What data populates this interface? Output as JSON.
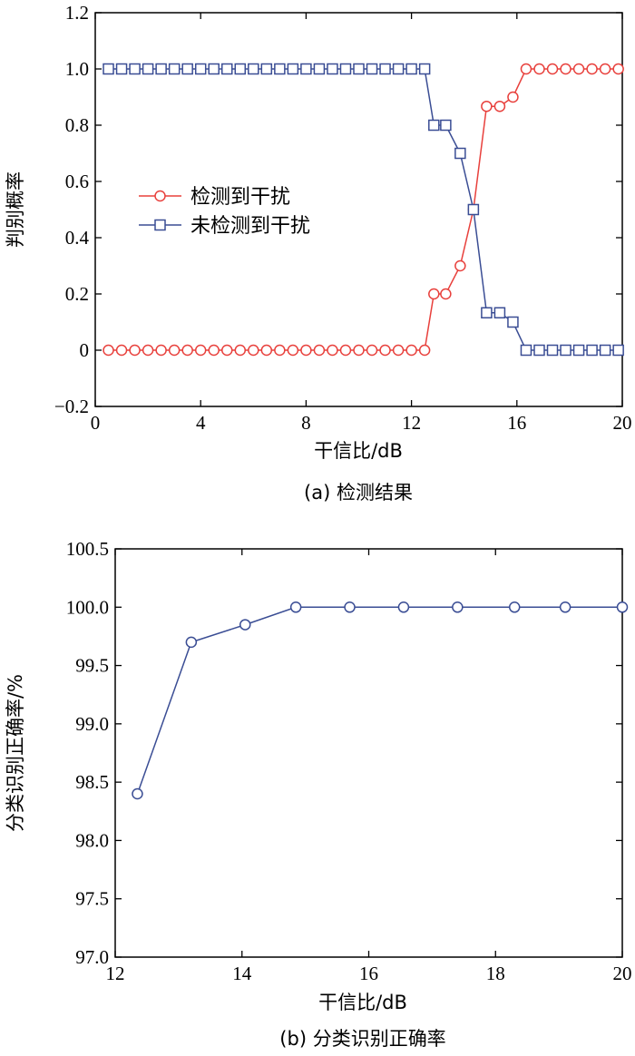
{
  "chart_data": [
    {
      "type": "line",
      "caption": "(a) 检测结果",
      "xlabel": "干信比/dB",
      "ylabel": "判别概率",
      "xlim": [
        0,
        20
      ],
      "ylim": [
        -0.2,
        1.2
      ],
      "xticks": [
        0,
        4,
        8,
        12,
        16,
        20
      ],
      "yticks": [
        -0.2,
        0,
        0.2,
        0.4,
        0.6,
        0.8,
        1.0,
        1.2
      ],
      "ytick_labels": [
        "−0.2",
        "0",
        "0.2",
        "0.4",
        "0.6",
        "0.8",
        "1.0",
        "1.2"
      ],
      "grid": false,
      "legend_position": "center-left",
      "series": [
        {
          "name": "检测到干扰",
          "color": "#e8403c",
          "marker": "circle",
          "x": [
            0.5,
            1.0,
            1.5,
            2.0,
            2.5,
            3.0,
            3.5,
            4.0,
            4.5,
            5.0,
            5.5,
            6.0,
            6.5,
            7.0,
            7.5,
            8.0,
            8.5,
            9.0,
            9.5,
            10.0,
            10.5,
            11.0,
            11.5,
            12.0,
            12.5,
            12.85,
            13.3,
            13.85,
            14.35,
            14.85,
            15.35,
            15.85,
            16.35,
            16.85,
            17.35,
            17.85,
            18.35,
            18.85,
            19.35,
            19.85
          ],
          "y": [
            0,
            0,
            0,
            0,
            0,
            0,
            0,
            0,
            0,
            0,
            0,
            0,
            0,
            0,
            0,
            0,
            0,
            0,
            0,
            0,
            0,
            0,
            0,
            0,
            0,
            0.2,
            0.2,
            0.3,
            0.5,
            0.867,
            0.867,
            0.9,
            1.0,
            1.0,
            1.0,
            1.0,
            1.0,
            1.0,
            1.0,
            1.0
          ]
        },
        {
          "name": "未检测到干扰",
          "color": "#3a4d94",
          "marker": "square",
          "x": [
            0.5,
            1.0,
            1.5,
            2.0,
            2.5,
            3.0,
            3.5,
            4.0,
            4.5,
            5.0,
            5.5,
            6.0,
            6.5,
            7.0,
            7.5,
            8.0,
            8.5,
            9.0,
            9.5,
            10.0,
            10.5,
            11.0,
            11.5,
            12.0,
            12.5,
            12.85,
            13.3,
            13.85,
            14.35,
            14.85,
            15.35,
            15.85,
            16.35,
            16.85,
            17.35,
            17.85,
            18.35,
            18.85,
            19.35,
            19.85
          ],
          "y": [
            1,
            1,
            1,
            1,
            1,
            1,
            1,
            1,
            1,
            1,
            1,
            1,
            1,
            1,
            1,
            1,
            1,
            1,
            1,
            1,
            1,
            1,
            1,
            1,
            1,
            0.8,
            0.8,
            0.7,
            0.5,
            0.133,
            0.133,
            0.1,
            0,
            0,
            0,
            0,
            0,
            0,
            0,
            0
          ]
        }
      ]
    },
    {
      "type": "line",
      "caption": "(b) 分类识别正确率",
      "xlabel": "干信比/dB",
      "ylabel": "分类识别正确率/%",
      "xlim": [
        12,
        20
      ],
      "ylim": [
        97.0,
        100.5
      ],
      "xticks": [
        12,
        14,
        16,
        18,
        20
      ],
      "yticks": [
        97.0,
        97.5,
        98.0,
        98.5,
        99.0,
        99.5,
        100.0,
        100.5
      ],
      "ytick_labels": [
        "97.0",
        "97.5",
        "98.0",
        "98.5",
        "99.0",
        "99.5",
        "100.0",
        "100.5"
      ],
      "grid": false,
      "series": [
        {
          "name": "",
          "color": "#3a4d94",
          "marker": "circle",
          "x": [
            12.35,
            13.2,
            14.05,
            14.85,
            15.7,
            16.55,
            17.4,
            18.3,
            19.1,
            20.0
          ],
          "y": [
            98.4,
            99.7,
            99.85,
            100.0,
            100.0,
            100.0,
            100.0,
            100.0,
            100.0,
            100.0
          ]
        }
      ]
    }
  ]
}
